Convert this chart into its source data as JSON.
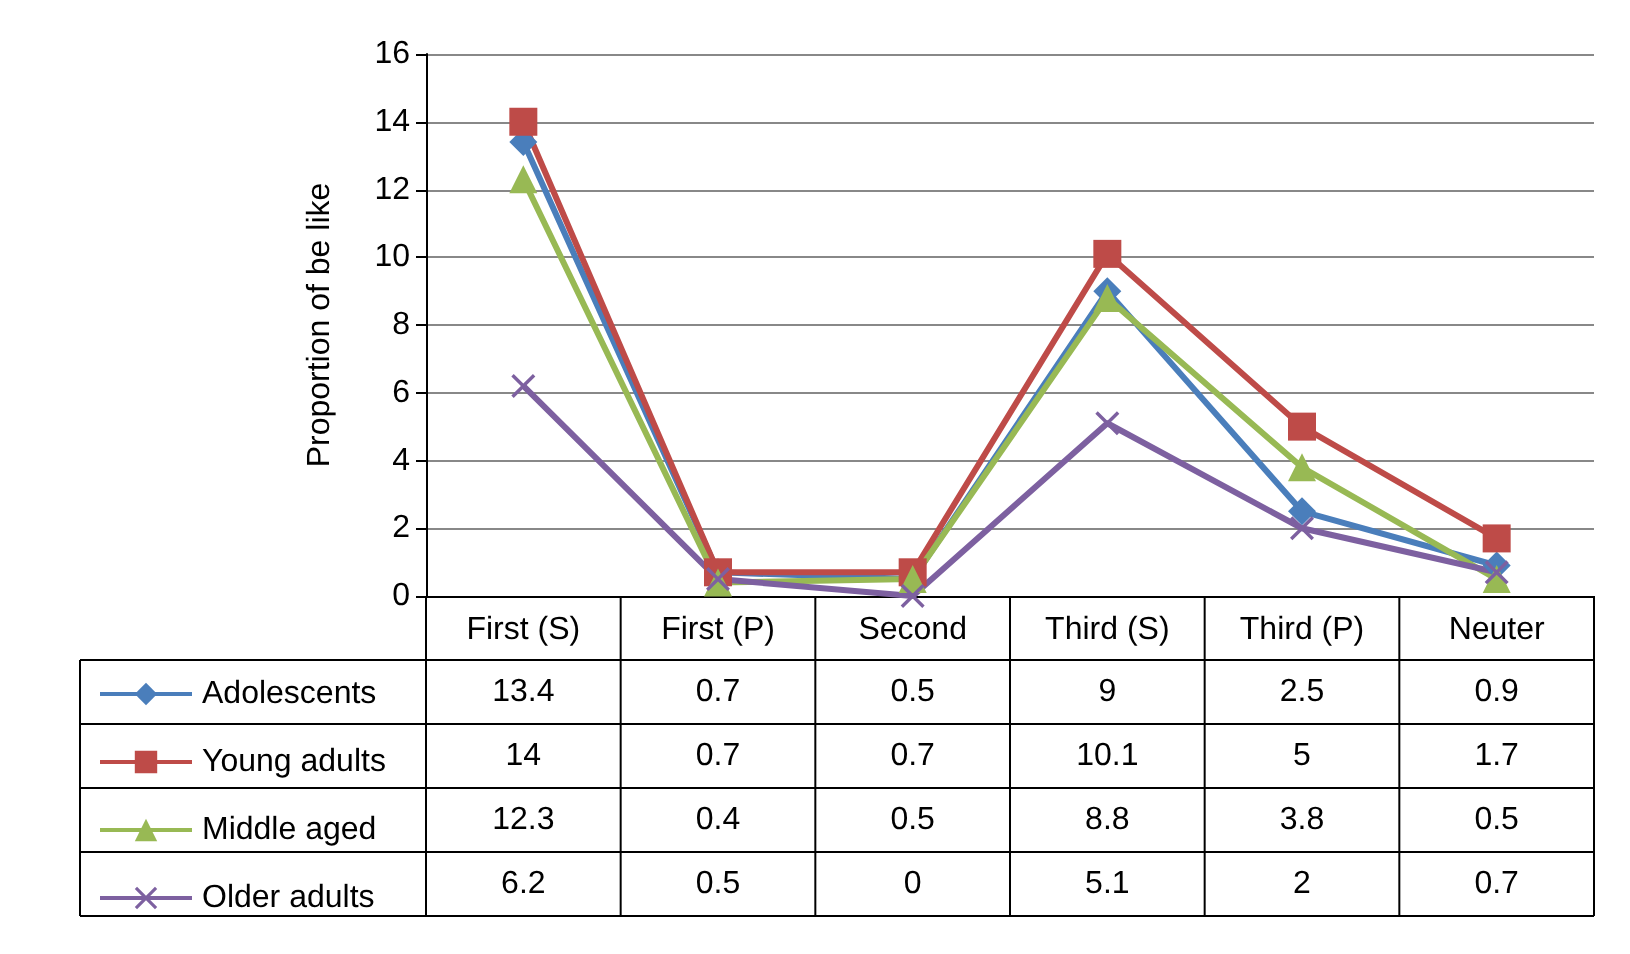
{
  "chart_data": {
    "type": "line",
    "ylabel": "Proportion of be like",
    "categories": [
      "First (S)",
      "First (P)",
      "Second",
      "Third (S)",
      "Third (P)",
      "Neuter"
    ],
    "series": [
      {
        "name": "Adolescents",
        "color": "#4a7ebb",
        "marker": "diamond",
        "values": [
          13.4,
          0.7,
          0.5,
          9,
          2.5,
          0.9
        ]
      },
      {
        "name": "Young adults",
        "color": "#be4b48",
        "marker": "square",
        "values": [
          14,
          0.7,
          0.7,
          10.1,
          5,
          1.7
        ]
      },
      {
        "name": "Middle aged",
        "color": "#98b954",
        "marker": "triangle",
        "values": [
          12.3,
          0.4,
          0.5,
          8.8,
          3.8,
          0.5
        ]
      },
      {
        "name": "Older adults",
        "color": "#7d60a0",
        "marker": "cross",
        "values": [
          6.2,
          0.5,
          0,
          5.1,
          2,
          0.7
        ]
      }
    ],
    "ylim": [
      0,
      16
    ],
    "yticks": [
      0,
      2,
      4,
      6,
      8,
      10,
      12,
      14,
      16
    ],
    "grid": "y",
    "legend": "bottom left",
    "data_labels": true
  }
}
